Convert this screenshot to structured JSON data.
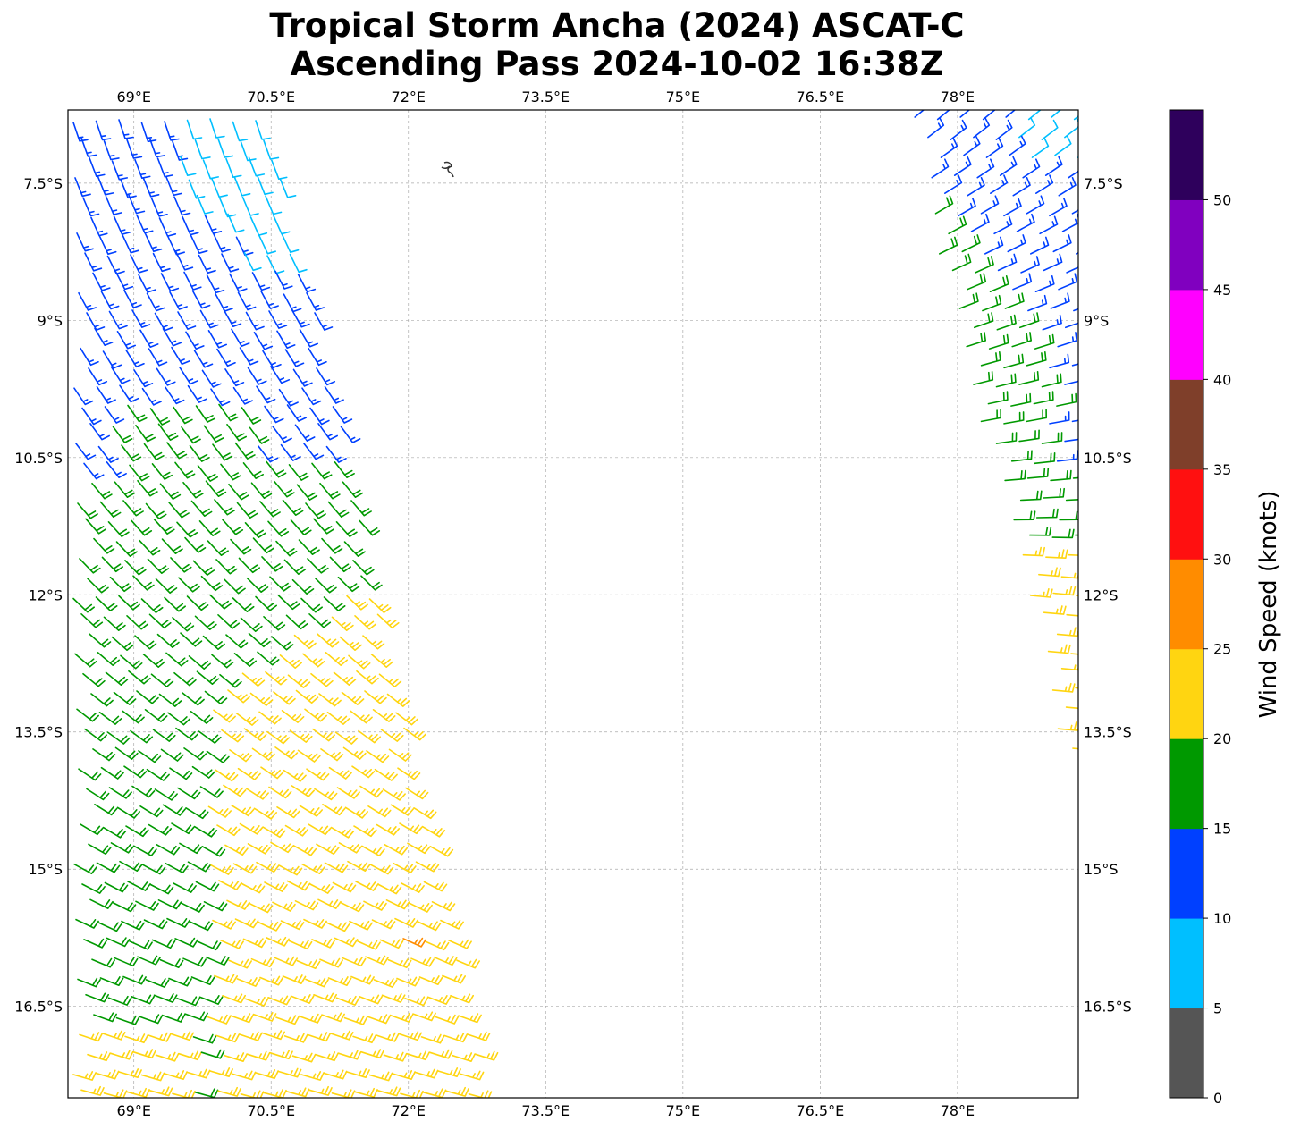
{
  "title": {
    "line1": "Tropical Storm Ancha (2024) ASCAT-C",
    "line2": "Ascending Pass 2024-10-02 16:38Z"
  },
  "chart_data": {
    "type": "wind_barbs",
    "projection": "PlateCarree",
    "lon_range": [
      68.28,
      79.32
    ],
    "lat_range": [
      -17.5,
      -6.7
    ],
    "grid": true,
    "lon_ticks": [
      69,
      70.5,
      72,
      73.5,
      75,
      76.5,
      78
    ],
    "lon_tick_labels": [
      "69°E",
      "70.5°E",
      "72°E",
      "73.5°E",
      "75°E",
      "76.5°E",
      "78°E"
    ],
    "lat_ticks": [
      -7.5,
      -9,
      -10.5,
      -12,
      -13.5,
      -15,
      -16.5
    ],
    "lat_tick_labels": [
      "7.5°S",
      "9°S",
      "10.5°S",
      "12°S",
      "13.5°S",
      "15°S",
      "16.5°S"
    ],
    "swaths": [
      {
        "name": "west swath",
        "lon_range": [
          68.3,
          72.9
        ],
        "lat_range": [
          -17.5,
          -6.8
        ],
        "wind_summary": "5-15 kt north of 9.8°S, 15-20 kt central, 20-25 kt in the southeast, isolated 25-30 kt near 16°S 71.8°E and 16.4°E 72.6°E"
      },
      {
        "name": "east swath",
        "lon_range": [
          77.5,
          79.32
        ],
        "lat_range": [
          -14.2,
          -6.7
        ],
        "wind_summary": "5-15 kt north of 9.5°S, 15-20 kt 9.5°S-11.7°S, 20-25 kt south of 11.7°S"
      }
    ],
    "colorbar": {
      "label": "Wind Speed (knots)",
      "levels": [
        0,
        5,
        10,
        15,
        20,
        25,
        30,
        35,
        40,
        45,
        50,
        55
      ],
      "tick_labels": [
        "0",
        "5",
        "10",
        "15",
        "20",
        "25",
        "30",
        "35",
        "40",
        "45",
        "50"
      ],
      "colors": [
        "#555555",
        "#00bfff",
        "#0040ff",
        "#009900",
        "#ffd511",
        "#ff8c00",
        "#ff1010",
        "#7f3f2a",
        "#ff00ff",
        "#8000bf",
        "#2e005c"
      ]
    }
  }
}
